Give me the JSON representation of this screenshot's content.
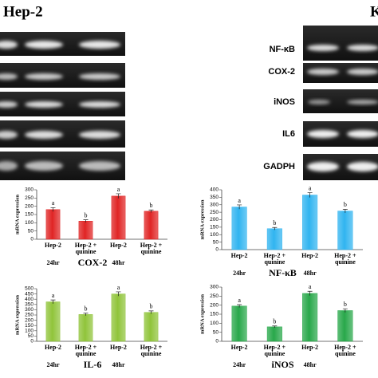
{
  "header": {
    "title": "Hep-2",
    "right_title": "K"
  },
  "gel_labels": [
    "NF-κB",
    "COX-2",
    "iNOS",
    "IL6",
    "GADPH"
  ],
  "chart_data": [
    {
      "type": "bar",
      "x_title": "COX-2",
      "y_label": "mRNA expression",
      "color": "#e02424",
      "categories": [
        "Hep-2",
        "Hep-2 + quinine",
        "Hep-2",
        "Hep-2 + quinine"
      ],
      "values": [
        180,
        110,
        262,
        170
      ],
      "errors": [
        12,
        8,
        14,
        8
      ],
      "annotations": [
        "a",
        "b",
        "a",
        "b"
      ],
      "group_labels": [
        "24hr",
        "48hr"
      ],
      "ylim": [
        0,
        300
      ],
      "yticks": [
        0,
        50,
        100,
        150,
        200,
        250,
        300
      ]
    },
    {
      "type": "bar",
      "x_title": "NF-κB",
      "y_label": "mRNA expression",
      "color": "#30b4f0",
      "categories": [
        "Hep-2",
        "Hep-2 + quinine",
        "Hep-2",
        "Hep-2 + quinine"
      ],
      "values": [
        285,
        140,
        365,
        258
      ],
      "errors": [
        14,
        8,
        16,
        12
      ],
      "annotations": [
        "a",
        "b",
        "a",
        "b"
      ],
      "group_labels": [
        "24hr",
        "48hr"
      ],
      "ylim": [
        0,
        400
      ],
      "yticks": [
        0,
        50,
        100,
        150,
        200,
        250,
        300,
        350,
        400
      ]
    },
    {
      "type": "bar",
      "x_title": "IL-6",
      "y_label": "mRNA expression",
      "color": "#90c43a",
      "categories": [
        "Hep-2",
        "Hep-2 + quinine",
        "Hep-2",
        "Hep-2 + quinine"
      ],
      "values": [
        375,
        255,
        450,
        275
      ],
      "errors": [
        18,
        12,
        20,
        14
      ],
      "annotations": [
        "a",
        "b",
        "a",
        "b"
      ],
      "group_labels": [
        "24hr",
        "48hr"
      ],
      "ylim": [
        0,
        500
      ],
      "yticks": [
        0,
        50,
        100,
        150,
        200,
        250,
        300,
        350,
        400,
        450,
        500
      ]
    },
    {
      "type": "bar",
      "x_title": "iNOS",
      "y_label": "mRNA expression",
      "color": "#28a84a",
      "categories": [
        "Hep-2",
        "Hep-2 + quinine",
        "Hep-2",
        "Hep-2 + quinine"
      ],
      "values": [
        195,
        80,
        265,
        170
      ],
      "errors": [
        8,
        5,
        12,
        10
      ],
      "annotations": [
        "a",
        "b",
        "a",
        "b"
      ],
      "group_labels": [
        "24hr",
        "48hr"
      ],
      "ylim": [
        0,
        300
      ],
      "yticks": [
        0,
        50,
        100,
        150,
        200,
        250,
        300
      ]
    }
  ]
}
